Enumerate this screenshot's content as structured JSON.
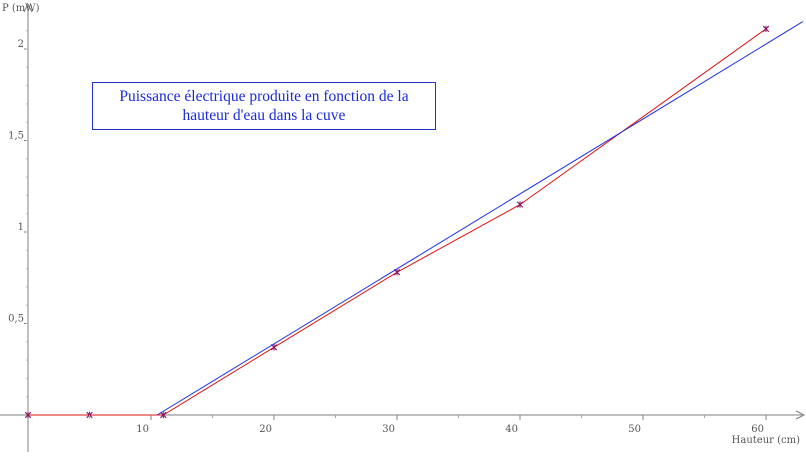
{
  "chart_data": {
    "type": "scatter",
    "title": "Puissance électrique produite en fonction de la hauteur d'eau dans la cuve",
    "xlabel": "Hauteur (cm)",
    "ylabel": "P (mW)",
    "xlim": [
      0,
      63
    ],
    "ylim": [
      0,
      2.2
    ],
    "x_ticks": [
      10,
      20,
      30,
      40,
      50,
      60
    ],
    "x_tick_labels": [
      "10",
      "20",
      "30",
      "40",
      "50",
      "60"
    ],
    "y_ticks": [
      0.5,
      1,
      1.5,
      2
    ],
    "y_tick_labels": [
      "0,5",
      "1",
      "1,5",
      "2"
    ],
    "grid": false,
    "series": [
      {
        "kind": "measured",
        "color": "#e01010",
        "marker_color": "#8b1a6b",
        "x": [
          0,
          5,
          11,
          20,
          30,
          40,
          60
        ],
        "y": [
          0,
          0,
          0,
          0.37,
          0.78,
          1.15,
          2.11
        ]
      },
      {
        "kind": "fit",
        "color": "#2030e0",
        "x": [
          10.5,
          63
        ],
        "y": [
          0,
          2.15
        ]
      }
    ]
  }
}
